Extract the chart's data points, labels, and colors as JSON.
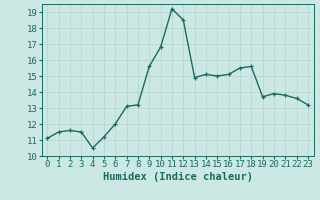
{
  "x": [
    0,
    1,
    2,
    3,
    4,
    5,
    6,
    7,
    8,
    9,
    10,
    11,
    12,
    13,
    14,
    15,
    16,
    17,
    18,
    19,
    20,
    21,
    22,
    23
  ],
  "y": [
    11.1,
    11.5,
    11.6,
    11.5,
    10.5,
    11.2,
    12.0,
    13.1,
    13.2,
    15.6,
    16.8,
    19.2,
    18.5,
    14.9,
    15.1,
    15.0,
    15.1,
    15.5,
    15.6,
    13.7,
    13.9,
    13.8,
    13.6,
    13.2
  ],
  "line_color": "#1a6b5e",
  "marker": "+",
  "marker_size": 3.5,
  "bg_color": "#cce8e4",
  "grid_color": "#b8d8d4",
  "xlabel": "Humidex (Indice chaleur)",
  "xlim": [
    -0.5,
    23.5
  ],
  "ylim": [
    10,
    19.5
  ],
  "yticks": [
    10,
    11,
    12,
    13,
    14,
    15,
    16,
    17,
    18,
    19
  ],
  "xticks": [
    0,
    1,
    2,
    3,
    4,
    5,
    6,
    7,
    8,
    9,
    10,
    11,
    12,
    13,
    14,
    15,
    16,
    17,
    18,
    19,
    20,
    21,
    22,
    23
  ],
  "xlabel_fontsize": 7.5,
  "tick_fontsize": 6.5,
  "line_width": 1.0
}
